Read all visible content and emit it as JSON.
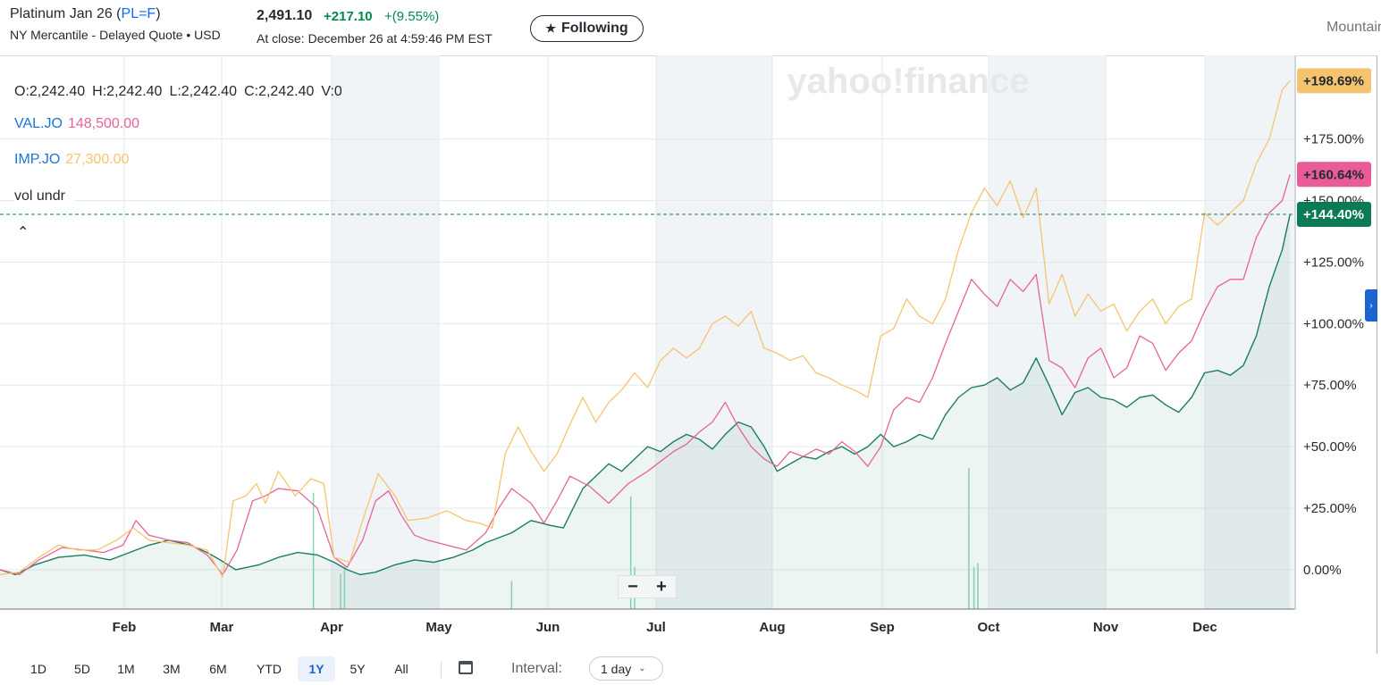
{
  "quote": {
    "name": "Platinum Jan 26",
    "paren_open": " (",
    "symbol": "PL=F",
    "paren_close": ")",
    "exchange": "NY Mercantile - Delayed Quote • USD",
    "price": "2,491.10",
    "change": "+217.10",
    "change_pct": "+(9.55%)",
    "close_time": "At close: December 26 at 4:59:46 PM EST",
    "follow_label": "Following",
    "follow_icon": "star-icon",
    "timezone_label": "Mountain"
  },
  "legend": {
    "ohlc": {
      "open": "O:2,242.40",
      "high": "H:2,242.40",
      "low": "L:2,242.40",
      "close": "C:2,242.40",
      "volume": "V:0"
    },
    "comparisons": [
      {
        "symbol": "VAL.JO",
        "value": "148,500.00",
        "color": "#e8629a"
      },
      {
        "symbol": "IMP.JO",
        "value": "27,300.00",
        "color": "#f6c46e"
      }
    ],
    "volume_label": "vol undr",
    "collapse_icon": "caret-up-icon"
  },
  "watermark": "yahoo!finance",
  "zoom": {
    "minus": "−",
    "plus": "+"
  },
  "toolbar": {
    "ranges": [
      "1D",
      "5D",
      "1M",
      "3M",
      "6M",
      "YTD",
      "1Y",
      "5Y",
      "All"
    ],
    "active_range": "1Y",
    "calendar_icon": "calendar-icon",
    "interval_label": "Interval:",
    "interval_value": "1 day",
    "interval_icon": "chevron-down-icon"
  },
  "chart_data": {
    "type": "line",
    "x_labels": [
      "Feb",
      "Mar",
      "Apr",
      "May",
      "Jun",
      "Jul",
      "Aug",
      "Sep",
      "Oct",
      "Nov",
      "Dec"
    ],
    "y_ticks": [
      "0.00%",
      "+25.00%",
      "+50.00%",
      "+75.00%",
      "+100.00%",
      "+125.00%",
      "+150.00%",
      "+175.00%"
    ],
    "ylim": [
      -16,
      209
    ],
    "grid": true,
    "shaded_months": [
      "Apr",
      "Jul",
      "Oct",
      "Dec"
    ],
    "reference_line": 144.4,
    "end_labels": [
      {
        "label": "+198.69%",
        "value": 198.69,
        "color": "#f6c46e",
        "text_color": "#232a31"
      },
      {
        "label": "+160.64%",
        "value": 160.64,
        "color": "#ea5c97",
        "text_color": "#232a31"
      },
      {
        "label": "+144.40%",
        "value": 144.4,
        "color": "#0b7a56",
        "text_color": "#ffffff"
      }
    ],
    "series": [
      {
        "name": "PL=F",
        "color": "#1a7d5d",
        "fill": true,
        "points": [
          [
            0,
            0.0
          ],
          [
            0.012,
            -2.0
          ],
          [
            0.027,
            2.0
          ],
          [
            0.045,
            5.0
          ],
          [
            0.065,
            6.0
          ],
          [
            0.085,
            4.0
          ],
          [
            0.1,
            7.0
          ],
          [
            0.115,
            10.0
          ],
          [
            0.13,
            12.0
          ],
          [
            0.147,
            10.0
          ],
          [
            0.16,
            7.0
          ],
          [
            0.17,
            4.0
          ],
          [
            0.182,
            0.0
          ],
          [
            0.2,
            2.0
          ],
          [
            0.215,
            5.0
          ],
          [
            0.23,
            7.0
          ],
          [
            0.245,
            6.0
          ],
          [
            0.258,
            3.0
          ],
          [
            0.268,
            0.0
          ],
          [
            0.278,
            -2.0
          ],
          [
            0.29,
            -1.0
          ],
          [
            0.305,
            2.0
          ],
          [
            0.32,
            4.0
          ],
          [
            0.335,
            3.0
          ],
          [
            0.35,
            5.0
          ],
          [
            0.365,
            8.0
          ],
          [
            0.375,
            11.0
          ],
          [
            0.385,
            13.0
          ],
          [
            0.395,
            15.0
          ],
          [
            0.41,
            20.0
          ],
          [
            0.425,
            18.0
          ],
          [
            0.435,
            17.0
          ],
          [
            0.45,
            33.0
          ],
          [
            0.46,
            38.0
          ],
          [
            0.47,
            43.0
          ],
          [
            0.48,
            40.0
          ],
          [
            0.49,
            45.0
          ],
          [
            0.5,
            50.0
          ],
          [
            0.51,
            48.0
          ],
          [
            0.52,
            52.0
          ],
          [
            0.53,
            55.0
          ],
          [
            0.54,
            53.0
          ],
          [
            0.55,
            49.0
          ],
          [
            0.56,
            55.0
          ],
          [
            0.57,
            60.0
          ],
          [
            0.58,
            58.0
          ],
          [
            0.59,
            50.0
          ],
          [
            0.6,
            40.0
          ],
          [
            0.61,
            43.0
          ],
          [
            0.62,
            46.0
          ],
          [
            0.63,
            45.0
          ],
          [
            0.64,
            48.0
          ],
          [
            0.65,
            50.0
          ],
          [
            0.66,
            47.0
          ],
          [
            0.67,
            50.0
          ],
          [
            0.68,
            55.0
          ],
          [
            0.69,
            50.0
          ],
          [
            0.7,
            52.0
          ],
          [
            0.71,
            55.0
          ],
          [
            0.72,
            53.0
          ],
          [
            0.73,
            63.0
          ],
          [
            0.74,
            70.0
          ],
          [
            0.75,
            74.0
          ],
          [
            0.76,
            75.0
          ],
          [
            0.77,
            78.0
          ],
          [
            0.78,
            73.0
          ],
          [
            0.79,
            76.0
          ],
          [
            0.8,
            86.0
          ],
          [
            0.81,
            75.0
          ],
          [
            0.82,
            63.0
          ],
          [
            0.83,
            72.0
          ],
          [
            0.84,
            74.0
          ],
          [
            0.85,
            70.0
          ],
          [
            0.86,
            69.0
          ],
          [
            0.87,
            66.0
          ],
          [
            0.88,
            70.0
          ],
          [
            0.89,
            71.0
          ],
          [
            0.9,
            67.0
          ],
          [
            0.91,
            64.0
          ],
          [
            0.92,
            70.0
          ],
          [
            0.93,
            80.0
          ],
          [
            0.94,
            81.0
          ],
          [
            0.95,
            79.0
          ],
          [
            0.96,
            83.0
          ],
          [
            0.97,
            95.0
          ],
          [
            0.98,
            115.0
          ],
          [
            0.99,
            130.0
          ],
          [
            0.996,
            144.4
          ]
        ]
      },
      {
        "name": "VAL.JO",
        "color": "#e8629a",
        "fill": false,
        "points": [
          [
            0,
            0.0
          ],
          [
            0.015,
            -2.0
          ],
          [
            0.03,
            4.0
          ],
          [
            0.048,
            9.0
          ],
          [
            0.065,
            8.0
          ],
          [
            0.08,
            7.0
          ],
          [
            0.095,
            10.0
          ],
          [
            0.105,
            20.0
          ],
          [
            0.115,
            14.0
          ],
          [
            0.13,
            12.0
          ],
          [
            0.145,
            11.0
          ],
          [
            0.16,
            6.0
          ],
          [
            0.172,
            -2.0
          ],
          [
            0.183,
            8.0
          ],
          [
            0.195,
            28.0
          ],
          [
            0.205,
            30.0
          ],
          [
            0.215,
            33.0
          ],
          [
            0.23,
            32.0
          ],
          [
            0.245,
            25.0
          ],
          [
            0.258,
            5.0
          ],
          [
            0.268,
            1.0
          ],
          [
            0.28,
            12.0
          ],
          [
            0.29,
            28.0
          ],
          [
            0.3,
            32.0
          ],
          [
            0.31,
            22.0
          ],
          [
            0.32,
            14.0
          ],
          [
            0.33,
            12.0
          ],
          [
            0.345,
            10.0
          ],
          [
            0.36,
            8.0
          ],
          [
            0.375,
            15.0
          ],
          [
            0.385,
            25.0
          ],
          [
            0.395,
            33.0
          ],
          [
            0.41,
            27.0
          ],
          [
            0.42,
            19.0
          ],
          [
            0.43,
            28.0
          ],
          [
            0.44,
            38.0
          ],
          [
            0.455,
            34.0
          ],
          [
            0.47,
            27.0
          ],
          [
            0.485,
            35.0
          ],
          [
            0.5,
            40.0
          ],
          [
            0.51,
            44.0
          ],
          [
            0.52,
            48.0
          ],
          [
            0.53,
            51.0
          ],
          [
            0.54,
            56.0
          ],
          [
            0.55,
            60.0
          ],
          [
            0.56,
            68.0
          ],
          [
            0.57,
            58.0
          ],
          [
            0.58,
            50.0
          ],
          [
            0.59,
            45.0
          ],
          [
            0.6,
            42.0
          ],
          [
            0.61,
            48.0
          ],
          [
            0.62,
            46.0
          ],
          [
            0.63,
            49.0
          ],
          [
            0.64,
            47.0
          ],
          [
            0.65,
            52.0
          ],
          [
            0.66,
            48.0
          ],
          [
            0.67,
            42.0
          ],
          [
            0.68,
            50.0
          ],
          [
            0.69,
            65.0
          ],
          [
            0.7,
            70.0
          ],
          [
            0.71,
            68.0
          ],
          [
            0.72,
            78.0
          ],
          [
            0.73,
            92.0
          ],
          [
            0.74,
            105.0
          ],
          [
            0.75,
            118.0
          ],
          [
            0.76,
            112.0
          ],
          [
            0.77,
            107.0
          ],
          [
            0.78,
            118.0
          ],
          [
            0.79,
            113.0
          ],
          [
            0.8,
            120.0
          ],
          [
            0.81,
            85.0
          ],
          [
            0.82,
            82.0
          ],
          [
            0.83,
            74.0
          ],
          [
            0.84,
            86.0
          ],
          [
            0.85,
            90.0
          ],
          [
            0.86,
            78.0
          ],
          [
            0.87,
            82.0
          ],
          [
            0.88,
            95.0
          ],
          [
            0.89,
            92.0
          ],
          [
            0.9,
            81.0
          ],
          [
            0.91,
            88.0
          ],
          [
            0.92,
            93.0
          ],
          [
            0.93,
            105.0
          ],
          [
            0.94,
            115.0
          ],
          [
            0.95,
            118.0
          ],
          [
            0.96,
            118.0
          ],
          [
            0.97,
            135.0
          ],
          [
            0.98,
            145.0
          ],
          [
            0.99,
            150.0
          ],
          [
            0.996,
            160.64
          ]
        ]
      },
      {
        "name": "IMP.JO",
        "color": "#f6c46e",
        "fill": false,
        "points": [
          [
            0,
            -2.0
          ],
          [
            0.015,
            -1.0
          ],
          [
            0.03,
            5.0
          ],
          [
            0.045,
            10.0
          ],
          [
            0.06,
            8.0
          ],
          [
            0.075,
            8.0
          ],
          [
            0.09,
            12.0
          ],
          [
            0.103,
            17.0
          ],
          [
            0.115,
            12.0
          ],
          [
            0.13,
            11.0
          ],
          [
            0.145,
            10.0
          ],
          [
            0.16,
            8.0
          ],
          [
            0.172,
            -3.0
          ],
          [
            0.18,
            28.0
          ],
          [
            0.19,
            30.0
          ],
          [
            0.198,
            35.0
          ],
          [
            0.205,
            27.0
          ],
          [
            0.215,
            40.0
          ],
          [
            0.228,
            30.0
          ],
          [
            0.24,
            37.0
          ],
          [
            0.25,
            35.0
          ],
          [
            0.258,
            5.0
          ],
          [
            0.27,
            3.0
          ],
          [
            0.28,
            20.0
          ],
          [
            0.292,
            39.0
          ],
          [
            0.305,
            30.0
          ],
          [
            0.315,
            20.0
          ],
          [
            0.33,
            21.0
          ],
          [
            0.345,
            24.0
          ],
          [
            0.36,
            20.0
          ],
          [
            0.37,
            19.0
          ],
          [
            0.38,
            17.0
          ],
          [
            0.39,
            47.0
          ],
          [
            0.4,
            58.0
          ],
          [
            0.41,
            48.0
          ],
          [
            0.42,
            40.0
          ],
          [
            0.43,
            47.0
          ],
          [
            0.44,
            59.0
          ],
          [
            0.45,
            70.0
          ],
          [
            0.46,
            60.0
          ],
          [
            0.47,
            68.0
          ],
          [
            0.48,
            73.0
          ],
          [
            0.49,
            80.0
          ],
          [
            0.5,
            74.0
          ],
          [
            0.51,
            85.0
          ],
          [
            0.52,
            90.0
          ],
          [
            0.53,
            86.0
          ],
          [
            0.54,
            90.0
          ],
          [
            0.55,
            100.0
          ],
          [
            0.56,
            103.0
          ],
          [
            0.57,
            99.0
          ],
          [
            0.58,
            105.0
          ],
          [
            0.59,
            90.0
          ],
          [
            0.6,
            88.0
          ],
          [
            0.61,
            85.0
          ],
          [
            0.62,
            87.0
          ],
          [
            0.63,
            80.0
          ],
          [
            0.64,
            78.0
          ],
          [
            0.65,
            75.0
          ],
          [
            0.66,
            73.0
          ],
          [
            0.67,
            70.0
          ],
          [
            0.68,
            95.0
          ],
          [
            0.69,
            98.0
          ],
          [
            0.7,
            110.0
          ],
          [
            0.71,
            103.0
          ],
          [
            0.72,
            100.0
          ],
          [
            0.73,
            110.0
          ],
          [
            0.74,
            130.0
          ],
          [
            0.75,
            145.0
          ],
          [
            0.76,
            155.0
          ],
          [
            0.77,
            148.0
          ],
          [
            0.78,
            158.0
          ],
          [
            0.79,
            143.0
          ],
          [
            0.8,
            155.0
          ],
          [
            0.81,
            108.0
          ],
          [
            0.82,
            120.0
          ],
          [
            0.83,
            103.0
          ],
          [
            0.84,
            112.0
          ],
          [
            0.85,
            105.0
          ],
          [
            0.86,
            108.0
          ],
          [
            0.87,
            97.0
          ],
          [
            0.88,
            105.0
          ],
          [
            0.89,
            110.0
          ],
          [
            0.9,
            100.0
          ],
          [
            0.91,
            107.0
          ],
          [
            0.92,
            110.0
          ],
          [
            0.93,
            145.0
          ],
          [
            0.94,
            140.0
          ],
          [
            0.95,
            145.0
          ],
          [
            0.96,
            150.0
          ],
          [
            0.97,
            165.0
          ],
          [
            0.98,
            175.0
          ],
          [
            0.99,
            195.0
          ],
          [
            0.996,
            198.69
          ]
        ]
      }
    ],
    "volume_bars": [
      [
        0.242,
        33
      ],
      [
        0.263,
        10
      ],
      [
        0.266,
        12
      ],
      [
        0.395,
        8
      ],
      [
        0.487,
        32
      ],
      [
        0.49,
        12
      ],
      [
        0.748,
        40
      ],
      [
        0.752,
        12
      ],
      [
        0.755,
        13
      ]
    ]
  }
}
